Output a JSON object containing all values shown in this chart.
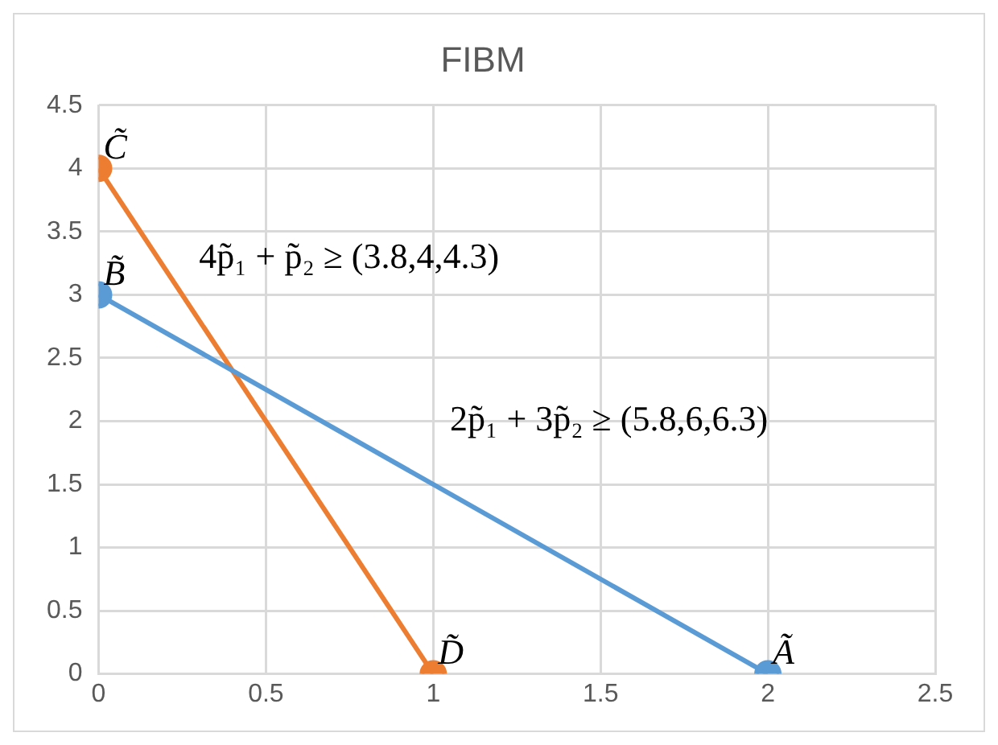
{
  "chart_data": {
    "type": "line",
    "title": "FIBM",
    "marker": "circle",
    "grid": true,
    "legend": false,
    "series": [
      {
        "x": [
          0,
          2
        ],
        "values": [
          3,
          0
        ],
        "color": "#5b9bd5"
      },
      {
        "x": [
          0,
          1
        ],
        "values": [
          4,
          0
        ],
        "color": "#ed7d31"
      }
    ],
    "xlim": [
      0,
      2.5
    ],
    "xticks": [
      0,
      0.5,
      1,
      1.5,
      2,
      2.5
    ],
    "ylim": [
      0,
      4.5
    ],
    "yticks": [
      0,
      0.5,
      1,
      1.5,
      2,
      2.5,
      3,
      3.5,
      4,
      4.5
    ],
    "annotations": [
      {
        "text": "C̃",
        "x": 0,
        "y": 4
      },
      {
        "text": "B̃",
        "x": 0,
        "y": 3
      },
      {
        "text": "D̃",
        "x": 1,
        "y": 0
      },
      {
        "text": "Ã",
        "x": 2,
        "y": 0
      },
      "4p̃₁ + p̃₂ ≥ (3.8,4,4.3)",
      "2p̃₁ + 3p̃₂ ≥ (5.8,6,6.3)"
    ]
  }
}
